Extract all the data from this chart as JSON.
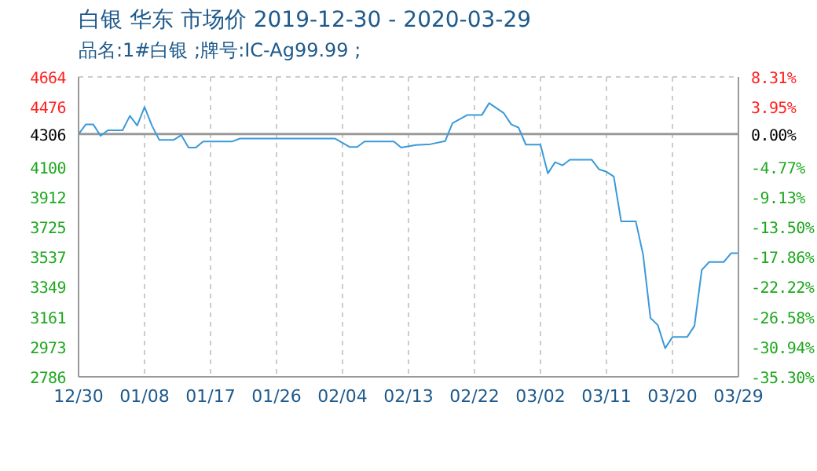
{
  "chart_data": {
    "type": "line",
    "title": "白银 华东 市场价 2019-12-30 - 2020-03-29",
    "subtitle": "品名:1#白银 ;牌号:IC-Ag99.99 ;",
    "x": [
      "2019-12-30",
      "2019-12-31",
      "2020-01-01",
      "2020-01-02",
      "2020-01-03",
      "2020-01-05",
      "2020-01-06",
      "2020-01-07",
      "2020-01-08",
      "2020-01-09",
      "2020-01-10",
      "2020-01-12",
      "2020-01-13",
      "2020-01-14",
      "2020-01-15",
      "2020-01-16",
      "2020-01-20",
      "2020-01-21",
      "2020-02-03",
      "2020-02-05",
      "2020-02-06",
      "2020-02-07",
      "2020-02-11",
      "2020-02-12",
      "2020-02-14",
      "2020-02-16",
      "2020-02-18",
      "2020-02-19",
      "2020-02-21",
      "2020-02-23",
      "2020-02-24",
      "2020-02-26",
      "2020-02-27",
      "2020-02-28",
      "2020-02-29",
      "2020-03-02",
      "2020-03-03",
      "2020-03-04",
      "2020-03-05",
      "2020-03-06",
      "2020-03-09",
      "2020-03-10",
      "2020-03-11",
      "2020-03-12",
      "2020-03-13",
      "2020-03-15",
      "2020-03-16",
      "2020-03-17",
      "2020-03-18",
      "2020-03-19",
      "2020-03-20",
      "2020-03-22",
      "2020-03-23",
      "2020-03-24",
      "2020-03-25",
      "2020-03-27",
      "2020-03-28",
      "2020-03-29"
    ],
    "series": [
      {
        "color": "#3a9ad9",
        "values": [
          4305,
          4367,
          4367,
          4295,
          4330,
          4330,
          4420,
          4360,
          4475,
          4360,
          4270,
          4270,
          4300,
          4222,
          4222,
          4260,
          4260,
          4278,
          4278,
          4225,
          4225,
          4260,
          4260,
          4222,
          4237,
          4243,
          4262,
          4375,
          4425,
          4425,
          4500,
          4437,
          4367,
          4347,
          4240,
          4240,
          4060,
          4130,
          4110,
          4145,
          4145,
          4085,
          4070,
          4040,
          3760,
          3760,
          3550,
          3155,
          3110,
          2965,
          3035,
          3035,
          3105,
          3455,
          3505,
          3505,
          3560,
          3560
        ]
      }
    ],
    "xlim": [
      "2019-12-30",
      "2020-03-29"
    ],
    "xticks": [
      {
        "value": "2019-12-30",
        "label": "12/30"
      },
      {
        "value": "2020-01-08",
        "label": "01/08"
      },
      {
        "value": "2020-01-17",
        "label": "01/17"
      },
      {
        "value": "2020-01-26",
        "label": "01/26"
      },
      {
        "value": "2020-02-04",
        "label": "02/04"
      },
      {
        "value": "2020-02-13",
        "label": "02/13"
      },
      {
        "value": "2020-02-22",
        "label": "02/22"
      },
      {
        "value": "2020-03-02",
        "label": "03/02"
      },
      {
        "value": "2020-03-11",
        "label": "03/11"
      },
      {
        "value": "2020-03-20",
        "label": "03/20"
      },
      {
        "value": "2020-03-29",
        "label": "03/29"
      }
    ],
    "ylim": [
      2786,
      4664
    ],
    "yticks": [
      2786,
      2973,
      3161,
      3349,
      3537,
      3725,
      3912,
      4100,
      4306,
      4476,
      4664
    ],
    "y2lim": [
      -35.3,
      8.31
    ],
    "y2ticks": [
      {
        "value": -35.3,
        "label": "-35.30%"
      },
      {
        "value": -30.94,
        "label": "-30.94%"
      },
      {
        "value": -26.58,
        "label": "-26.58%"
      },
      {
        "value": -22.22,
        "label": "-22.22%"
      },
      {
        "value": -17.86,
        "label": "-17.86%"
      },
      {
        "value": -13.5,
        "label": "-13.50%"
      },
      {
        "value": -9.13,
        "label": "-9.13%"
      },
      {
        "value": -4.77,
        "label": "-4.77%"
      },
      {
        "value": 0,
        "label": "0.00%"
      },
      {
        "value": 3.95,
        "label": "3.95%"
      },
      {
        "value": 8.31,
        "label": "8.31%"
      }
    ],
    "ref_lines": [
      {
        "axis": "y",
        "value": 4306,
        "color": "#999999"
      }
    ],
    "grid": true,
    "marker": "none",
    "line_style": "solid"
  }
}
